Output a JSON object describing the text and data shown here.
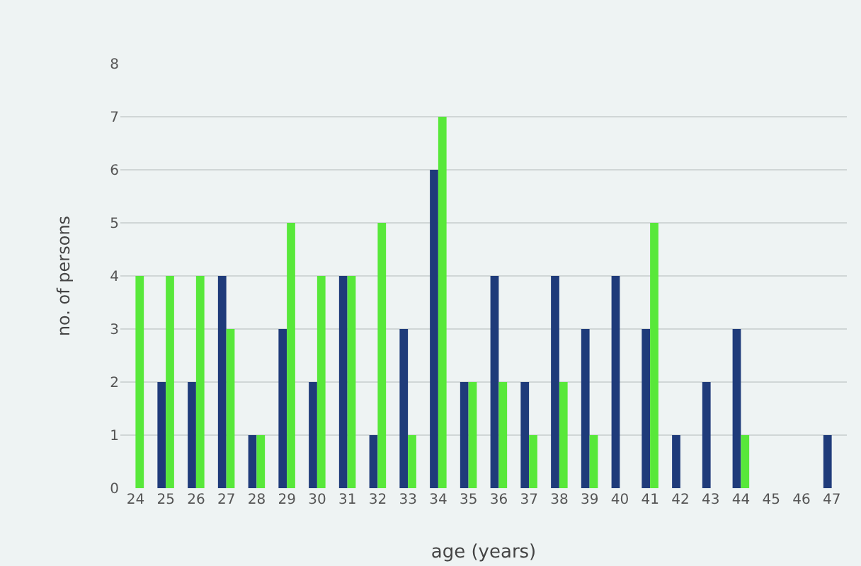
{
  "chart_data": {
    "type": "bar",
    "xlabel": "age (years)",
    "ylabel": "no. of persons",
    "categories": [
      "24",
      "25",
      "26",
      "27",
      "28",
      "29",
      "30",
      "31",
      "32",
      "33",
      "34",
      "35",
      "36",
      "37",
      "38",
      "39",
      "40",
      "41",
      "42",
      "43",
      "44",
      "45",
      "46",
      "47"
    ],
    "series": [
      {
        "color": "#1f3b7a",
        "values": [
          0,
          2,
          2,
          4,
          1,
          3,
          2,
          4,
          1,
          3,
          6,
          2,
          4,
          2,
          4,
          3,
          4,
          3,
          1,
          2,
          3,
          0,
          0,
          1
        ]
      },
      {
        "color": "#58e83a",
        "values": [
          4,
          4,
          4,
          3,
          1,
          5,
          4,
          4,
          5,
          1,
          7,
          2,
          2,
          1,
          2,
          1,
          0,
          5,
          0,
          0,
          1,
          0,
          0,
          0
        ]
      }
    ],
    "ylim": [
      0,
      8
    ],
    "yticks": [
      0,
      1,
      2,
      3,
      4,
      5,
      6,
      7,
      8
    ],
    "grid": "y"
  }
}
